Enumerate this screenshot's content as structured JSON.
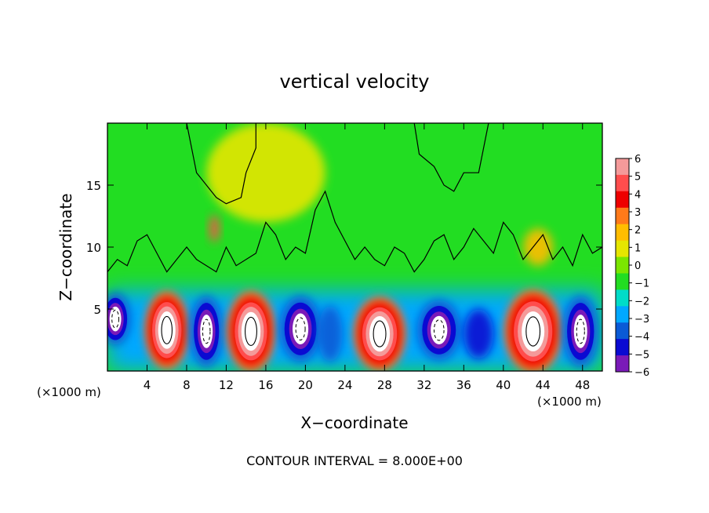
{
  "chart_data": {
    "type": "heatmap",
    "title": "vertical velocity",
    "xlabel": "X−coordinate",
    "ylabel": "Z−coordinate",
    "x_unit": "(×1000 m)",
    "y_unit": "(×1000 m)",
    "xlim": [
      0,
      50
    ],
    "ylim": [
      0,
      20
    ],
    "x_ticks": [
      4,
      8,
      12,
      16,
      20,
      24,
      28,
      32,
      36,
      40,
      44,
      48
    ],
    "y_ticks": [
      5,
      10,
      15
    ],
    "colorbar": {
      "levels": [
        6,
        5,
        4,
        3,
        2,
        1,
        0,
        -1,
        -2,
        -3,
        -4,
        -5,
        -6
      ],
      "labels": [
        "6",
        "5",
        "4",
        "3",
        "2",
        "1",
        "0",
        "−1",
        "−2",
        "−3",
        "−4",
        "−5",
        "−6"
      ],
      "colors": [
        "#f49a9a",
        "#ff4d4d",
        "#ee0000",
        "#ff7a1a",
        "#ffbd00",
        "#e6e600",
        "#7be600",
        "#22dd22",
        "#00dcc8",
        "#00a8ff",
        "#0a5ad6",
        "#0a0ad2",
        "#7a1ab8"
      ]
    },
    "cells": [
      {
        "x": 6,
        "z": 3.3,
        "w": 3.8,
        "h": 5.8,
        "value": 6
      },
      {
        "x": 10,
        "z": 3.2,
        "w": 3.0,
        "h": 5.4,
        "value": -6
      },
      {
        "x": 14.5,
        "z": 3.2,
        "w": 4.2,
        "h": 6.0,
        "value": 6
      },
      {
        "x": 19.5,
        "z": 3.4,
        "w": 3.8,
        "h": 5.0,
        "value": -6
      },
      {
        "x": 22.5,
        "z": 3.0,
        "w": 2.5,
        "h": 4.5,
        "value": -4
      },
      {
        "x": 27.5,
        "z": 3.0,
        "w": 4.5,
        "h": 5.5,
        "value": 6
      },
      {
        "x": 33.5,
        "z": 3.3,
        "w": 4.0,
        "h": 4.6,
        "value": -6
      },
      {
        "x": 37.5,
        "z": 3.0,
        "w": 3.0,
        "h": 4.0,
        "value": -5
      },
      {
        "x": 43.0,
        "z": 3.2,
        "w": 5.0,
        "h": 6.2,
        "value": 6
      },
      {
        "x": 47.8,
        "z": 3.2,
        "w": 3.2,
        "h": 5.4,
        "value": -6
      },
      {
        "x": 0.8,
        "z": 4.2,
        "w": 2.8,
        "h": 4.0,
        "value": -6
      },
      {
        "x": 10.8,
        "z": 11.5,
        "w": 1.0,
        "h": 2.2,
        "value": 5
      },
      {
        "x": 43.5,
        "z": 10.0,
        "w": 3.0,
        "h": 3.0,
        "value": 2
      },
      {
        "x": 16.0,
        "z": 16.0,
        "w": 12.0,
        "h": 8.0,
        "value": 1
      }
    ],
    "footer": "CONTOUR INTERVAL = 8.000E+00"
  }
}
